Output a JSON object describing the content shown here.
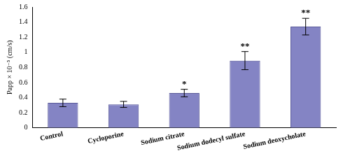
{
  "chart_data": {
    "type": "bar",
    "y_label": "Papp × 10⁻⁵ (cm/s)",
    "categories": [
      "Control",
      "Cycloporine",
      "Sodium citrate",
      "Sodium dodecyl sulfate",
      "Sodium deoxycholate"
    ],
    "values": [
      0.33,
      0.31,
      0.46,
      0.89,
      1.34
    ],
    "errors": [
      0.05,
      0.04,
      0.05,
      0.12,
      0.11
    ],
    "annotations": [
      null,
      null,
      "*",
      "**",
      "**"
    ],
    "color": "#8484c4",
    "ylim": [
      0,
      1.6
    ],
    "yticks": [
      0,
      0.2,
      0.4,
      0.6,
      0.8,
      1,
      1.2,
      1.4,
      1.6
    ],
    "grid": false
  }
}
